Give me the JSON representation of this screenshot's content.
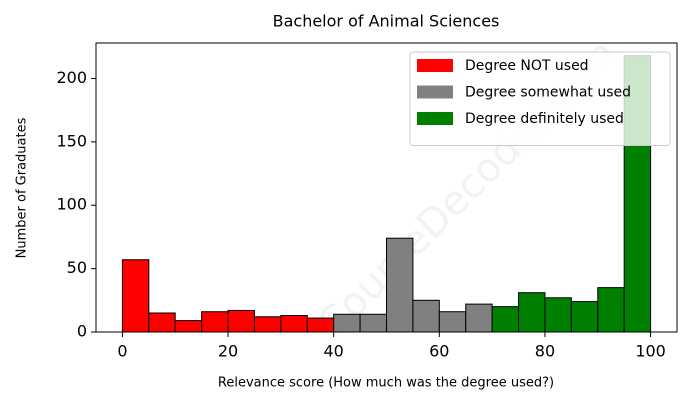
{
  "chart_data": {
    "type": "histogram",
    "title": "Bachelor of Animal Sciences",
    "xlabel": "Relevance score (How much was the degree used?)",
    "ylabel": "Number of Graduates",
    "watermark": "CourseDecoder.com",
    "series": [
      {
        "name": "Degree NOT used",
        "color": "#ff0000",
        "bins": [
          0,
          5,
          10,
          15,
          20,
          25,
          30,
          35,
          40
        ],
        "values": [
          57,
          15,
          9,
          16,
          17,
          12,
          13,
          11
        ]
      },
      {
        "name": "Degree somewhat used",
        "color": "#808080",
        "bins": [
          40,
          45,
          50,
          55,
          60,
          65,
          70
        ],
        "values": [
          14,
          14,
          74,
          25,
          16,
          22
        ]
      },
      {
        "name": "Degree definitely used",
        "color": "#008000",
        "bins": [
          70,
          75,
          80,
          85,
          90,
          95,
          100
        ],
        "values": [
          20,
          31,
          27,
          24,
          35,
          218
        ]
      }
    ],
    "xlim": [
      -5,
      105
    ],
    "xticks": [
      0,
      20,
      40,
      60,
      80,
      100
    ],
    "ylim": [
      0,
      228
    ],
    "yticks": [
      0,
      50,
      100,
      150,
      200
    ],
    "legend": "upper right"
  }
}
